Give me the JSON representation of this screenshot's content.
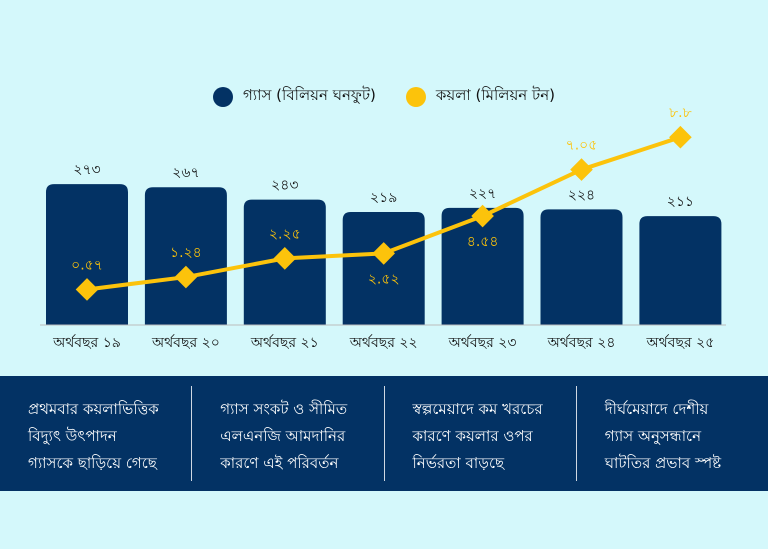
{
  "chart_data": {
    "type": "bar+line",
    "categories": [
      "অর্থবছর ১৯",
      "অর্থবছর ২০",
      "অর্থবছর ২১",
      "অর্থবছর ২২",
      "অর্থবছর ২৩",
      "অর্থবছর ২৪",
      "অর্থবছর ২৫"
    ],
    "series": [
      {
        "name": "গ্যাস (বিলিয়ন ঘনফুট)",
        "type": "bar",
        "color": "#033264",
        "values": [
          273,
          267,
          243,
          219,
          227,
          224,
          211
        ],
        "labels": [
          "২৭৩",
          "২৬৭",
          "২৪৩",
          "২১৯",
          "২২৭",
          "২২৪",
          "২১১"
        ]
      },
      {
        "name": "কয়লা (মিলিয়ন টন)",
        "type": "line",
        "color": "#fcc30b",
        "values": [
          0.57,
          1.24,
          2.25,
          2.52,
          4.54,
          7.05,
          8.8
        ],
        "labels": [
          "০.৫৭",
          "১.২৪",
          "২.২৫",
          "২.৫২",
          "৪.৫৪",
          "৭.০৫",
          "৮.৮"
        ]
      }
    ],
    "legend": "top-center",
    "grid": false
  },
  "notes": [
    [
      "প্রথমবার কয়লাভিত্তিক",
      "বিদ্যুৎ উৎপাদন",
      "গ্যাসকে ছাড়িয়ে গেছে"
    ],
    [
      "গ্যাস সংকট ও সীমিত",
      "এলএনজি আমদানির",
      "কারণে এই পরিবর্তন"
    ],
    [
      "স্বল্পমেয়াদে কম খরচের",
      "কারণে কয়লার ওপর",
      "নির্ভরতা বাড়ছে"
    ],
    [
      "দীর্ঘমেয়াদে দেশীয়",
      "গ্যাস অনুসন্ধানে",
      "ঘাটতির প্রভাব স্পষ্ট"
    ]
  ]
}
